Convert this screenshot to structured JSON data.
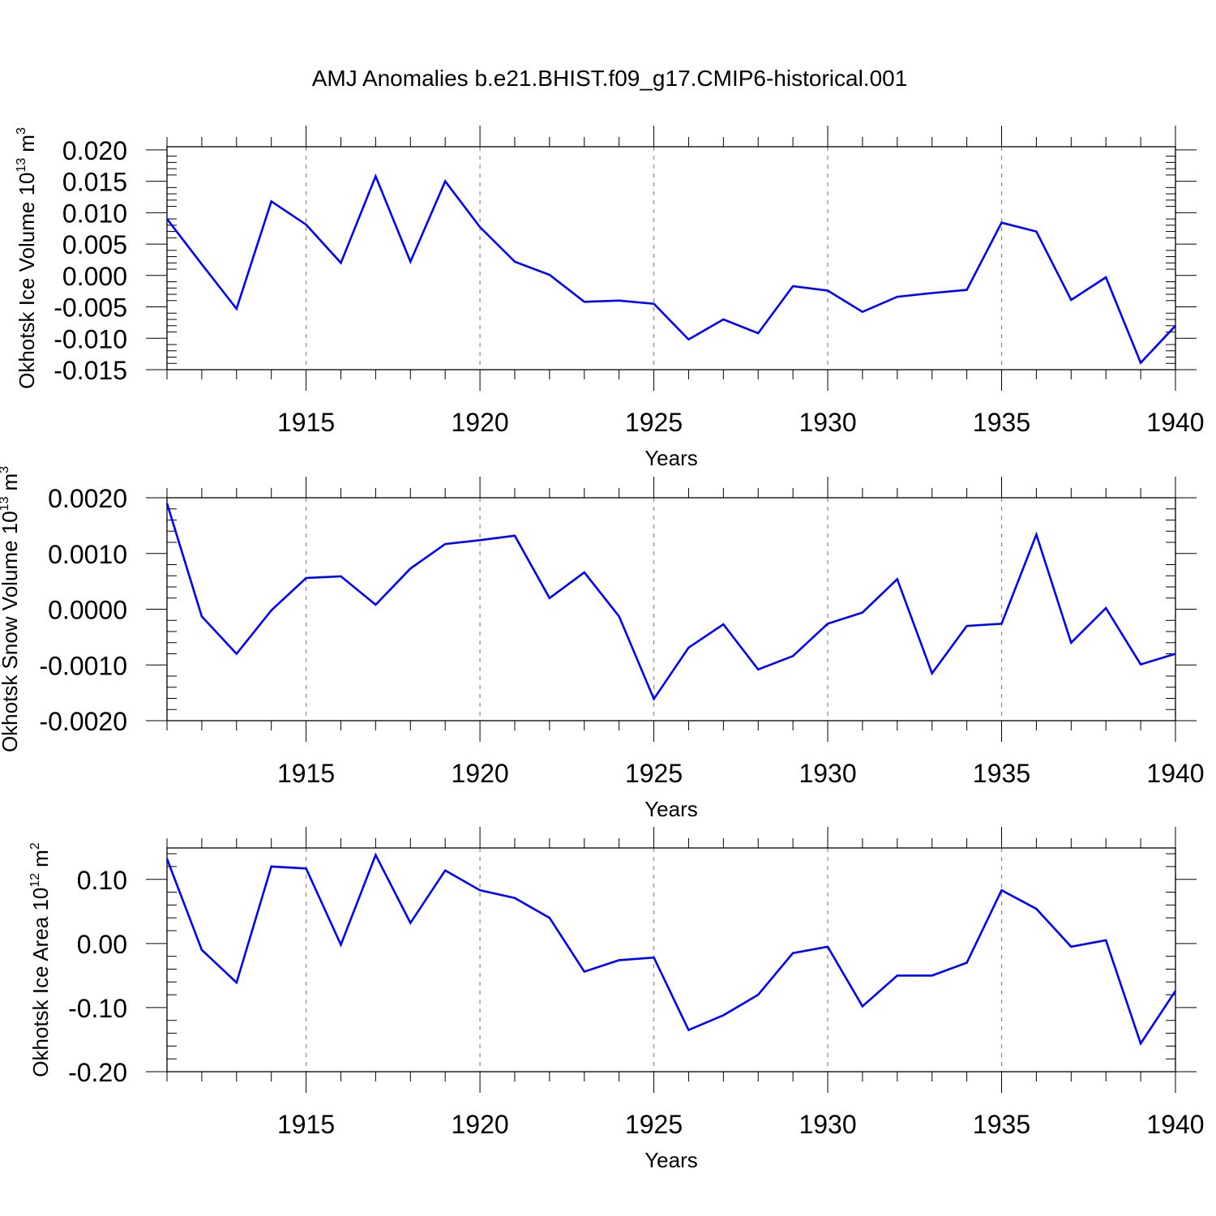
{
  "title": "AMJ Anomalies b.e21.BHIST.f09_g17.CMIP6-historical.001",
  "line_color": "#0000ff",
  "chart_data": [
    {
      "type": "line",
      "ylabel": "Okhotsk Ice Volume 10",
      "ylabel_sup": "13",
      "ylabel_unit": "m",
      "ylabel_unit_sup": "3",
      "xlabel": "Years",
      "xlim": [
        1911,
        1940
      ],
      "ylim": [
        -0.015,
        0.0205
      ],
      "yticks": [
        -0.015,
        -0.01,
        -0.005,
        0.0,
        0.005,
        0.01,
        0.015,
        0.02
      ],
      "ytick_labels": [
        "-0.015",
        "-0.010",
        "-0.005",
        "0.000",
        "0.005",
        "0.010",
        "0.015",
        "0.020"
      ],
      "xticks": [
        1915,
        1920,
        1925,
        1930,
        1935,
        1940
      ],
      "xtick_labels": [
        "1915",
        "1920",
        "1925",
        "1930",
        "1935",
        "1940"
      ],
      "grid": "dashed vertical at major x ticks",
      "x": [
        1911,
        1912,
        1913,
        1914,
        1915,
        1916,
        1917,
        1918,
        1919,
        1920,
        1921,
        1922,
        1923,
        1924,
        1925,
        1926,
        1927,
        1928,
        1929,
        1930,
        1931,
        1932,
        1933,
        1934,
        1935,
        1936,
        1937,
        1938,
        1939,
        1940
      ],
      "values": [
        0.009,
        0.0018,
        -0.0053,
        0.0118,
        0.0081,
        0.002,
        0.0158,
        0.0022,
        0.015,
        0.0077,
        0.0022,
        0.0001,
        -0.0042,
        -0.004,
        -0.0045,
        -0.0102,
        -0.007,
        -0.0092,
        -0.0017,
        -0.0024,
        -0.0058,
        -0.0034,
        -0.0028,
        -0.0023,
        0.0084,
        0.007,
        -0.0039,
        -0.0003,
        -0.0139,
        -0.008
      ]
    },
    {
      "type": "line",
      "ylabel": "Okhotsk Snow Volume 10",
      "ylabel_sup": "13",
      "ylabel_unit": "m",
      "ylabel_unit_sup": "3",
      "xlabel": "Years",
      "xlim": [
        1911,
        1940
      ],
      "ylim": [
        -0.002,
        0.002
      ],
      "yticks": [
        -0.002,
        -0.001,
        0.0,
        0.001,
        0.002
      ],
      "ytick_labels": [
        "-0.0020",
        "-0.0010",
        "0.0000",
        "0.0010",
        "0.0020"
      ],
      "xticks": [
        1915,
        1920,
        1925,
        1930,
        1935,
        1940
      ],
      "xtick_labels": [
        "1915",
        "1920",
        "1925",
        "1930",
        "1935",
        "1940"
      ],
      "grid": "dashed vertical at major x ticks",
      "x": [
        1911,
        1912,
        1913,
        1914,
        1915,
        1916,
        1917,
        1918,
        1919,
        1920,
        1921,
        1922,
        1923,
        1924,
        1925,
        1926,
        1927,
        1928,
        1929,
        1930,
        1931,
        1932,
        1933,
        1934,
        1935,
        1936,
        1937,
        1938,
        1939,
        1940
      ],
      "values": [
        0.0019,
        -0.00013,
        -0.0008,
        -2e-05,
        0.00056,
        0.00059,
        8e-05,
        0.00073,
        0.00117,
        0.00124,
        0.00132,
        0.0002,
        0.00066,
        -0.00013,
        -0.00161,
        -0.00069,
        -0.00027,
        -0.00108,
        -0.00084,
        -0.00026,
        -6e-05,
        0.00054,
        -0.00115,
        -0.0003,
        -0.00026,
        0.00134,
        -0.0006,
        2e-05,
        -0.00099,
        -0.0008
      ]
    },
    {
      "type": "line",
      "ylabel": "Okhotsk Ice Area 10",
      "ylabel_sup": "12",
      "ylabel_unit": "m",
      "ylabel_unit_sup": "2",
      "xlabel": "Years",
      "xlim": [
        1911,
        1940
      ],
      "ylim": [
        -0.2,
        0.149
      ],
      "yticks": [
        -0.2,
        -0.1,
        0.0,
        0.1
      ],
      "ytick_labels": [
        "-0.20",
        "-0.10",
        "0.00",
        "0.10"
      ],
      "xticks": [
        1915,
        1920,
        1925,
        1930,
        1935,
        1940
      ],
      "xtick_labels": [
        "1915",
        "1920",
        "1925",
        "1930",
        "1935",
        "1940"
      ],
      "grid": "dashed vertical at major x ticks",
      "x": [
        1911,
        1912,
        1913,
        1914,
        1915,
        1916,
        1917,
        1918,
        1919,
        1920,
        1921,
        1922,
        1923,
        1924,
        1925,
        1926,
        1927,
        1928,
        1929,
        1930,
        1931,
        1932,
        1933,
        1934,
        1935,
        1936,
        1937,
        1938,
        1939,
        1940
      ],
      "values": [
        0.132,
        -0.01,
        -0.061,
        0.12,
        0.117,
        -0.002,
        0.138,
        0.032,
        0.114,
        0.083,
        0.071,
        0.04,
        -0.044,
        -0.026,
        -0.022,
        -0.135,
        -0.112,
        -0.08,
        -0.015,
        -0.005,
        -0.098,
        -0.05,
        -0.05,
        -0.03,
        0.083,
        0.054,
        -0.005,
        0.005,
        -0.156,
        -0.074
      ]
    }
  ]
}
